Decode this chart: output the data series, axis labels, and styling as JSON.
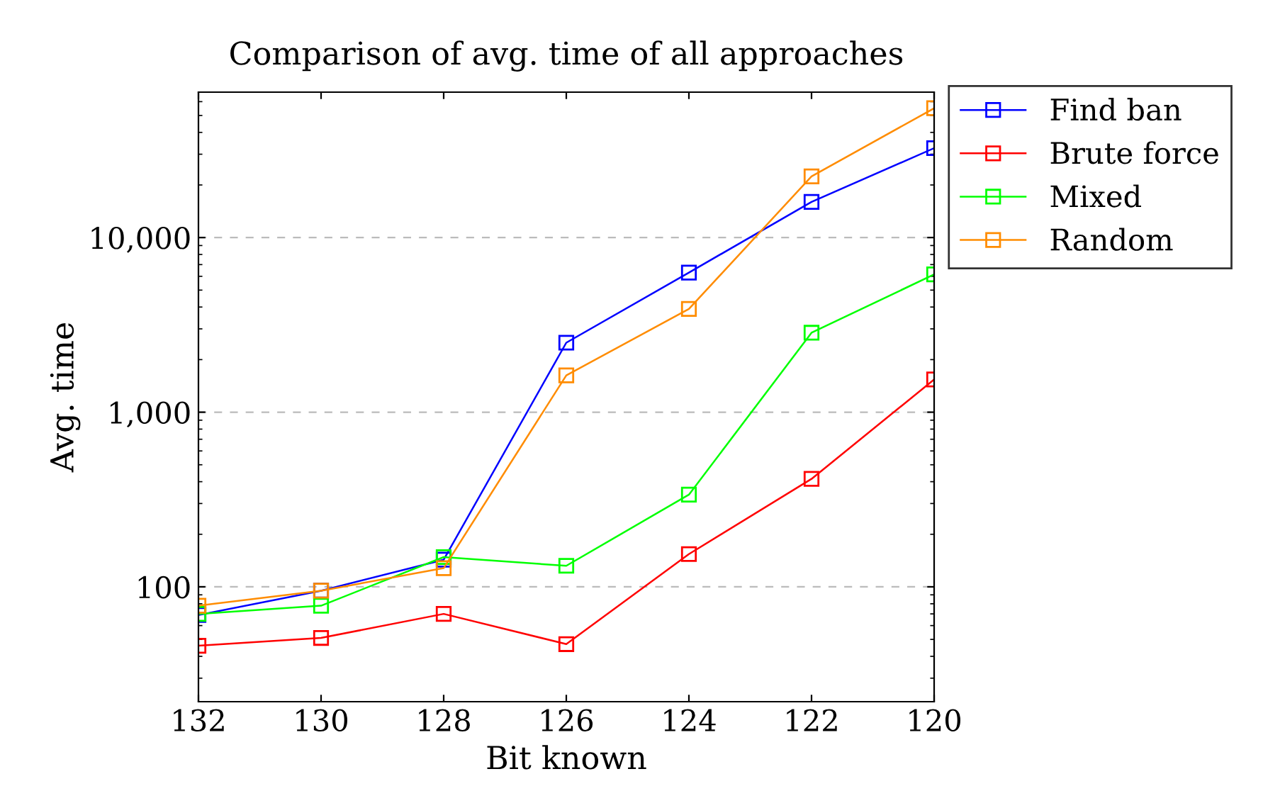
{
  "chart_data": {
    "type": "line",
    "title": "Comparison of avg. time of all approaches",
    "xlabel": "Bit known",
    "ylabel": "Avg. time",
    "x": [
      132,
      130,
      128,
      126,
      124,
      122,
      120
    ],
    "xlim": [
      132,
      120
    ],
    "xticks": [
      132,
      130,
      128,
      126,
      124,
      122,
      120
    ],
    "log": "y",
    "ylim": [
      22,
      68000
    ],
    "yticks": [
      100,
      {
        "value": 1000,
        "label": "1,000"
      },
      {
        "value": 10000,
        "label": "10,000"
      }
    ],
    "grid": "y",
    "legend": "top right",
    "marker": "square",
    "line_style": "solid",
    "series": [
      {
        "name": "Find ban",
        "color": "#0000ff",
        "values": [
          69,
          95,
          143,
          2500,
          6300,
          16000,
          32500
        ]
      },
      {
        "name": "Brute force",
        "color": "#ff0000",
        "values": [
          46,
          51,
          70,
          47,
          154,
          415,
          1540
        ]
      },
      {
        "name": "Mixed",
        "color": "#00ff00",
        "values": [
          70,
          78,
          148,
          132,
          337,
          2850,
          6150
        ]
      },
      {
        "name": "Random",
        "color": "#ff8c00",
        "values": [
          78,
          95,
          128,
          1625,
          3900,
          22400,
          55000
        ]
      }
    ]
  }
}
